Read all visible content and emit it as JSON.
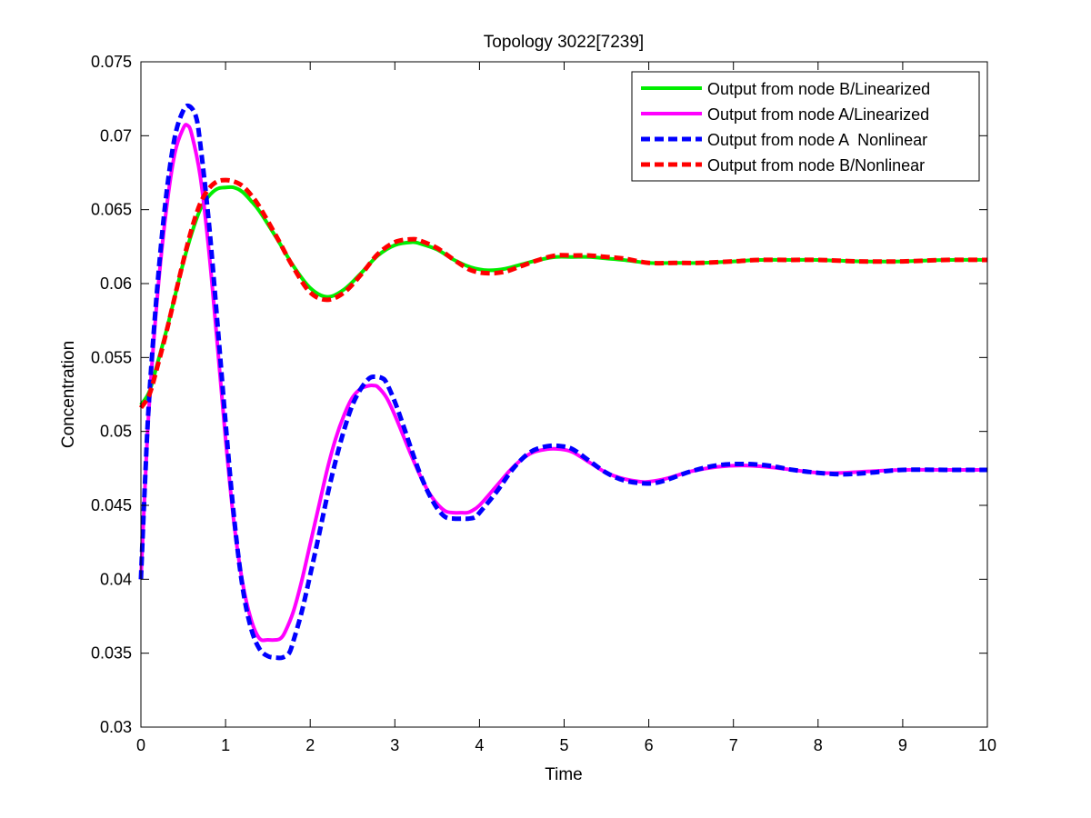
{
  "chart_data": {
    "type": "line",
    "title": "Topology 3022[7239]",
    "xlabel": "Time",
    "ylabel": "Concentration",
    "xlim": [
      0,
      10
    ],
    "ylim": [
      0.03,
      0.075
    ],
    "xticks": [
      0,
      1,
      2,
      3,
      4,
      5,
      6,
      7,
      8,
      9,
      10
    ],
    "yticks": [
      0.03,
      0.035,
      0.04,
      0.045,
      0.05,
      0.055,
      0.06,
      0.065,
      0.07,
      0.075
    ],
    "xtick_labels": [
      "0",
      "1",
      "2",
      "3",
      "4",
      "5",
      "6",
      "7",
      "8",
      "9",
      "10"
    ],
    "ytick_labels": [
      "0.03",
      "0.035",
      "0.04",
      "0.045",
      "0.05",
      "0.055",
      "0.06",
      "0.065",
      "0.07",
      "0.075"
    ],
    "grid": false,
    "legend_position": "top-right",
    "series": [
      {
        "name": "Output from node B/Linearized",
        "color": "#00ee00",
        "style": "solid",
        "x": [
          0,
          0.1,
          0.2,
          0.3,
          0.4,
          0.5,
          0.6,
          0.7,
          0.8,
          0.9,
          1.0,
          1.1,
          1.2,
          1.3,
          1.4,
          1.6,
          1.8,
          2.0,
          2.2,
          2.4,
          2.6,
          2.8,
          3.0,
          3.2,
          3.3,
          3.5,
          3.7,
          3.9,
          4.1,
          4.3,
          4.5,
          4.7,
          4.9,
          5.1,
          5.3,
          5.5,
          5.7,
          6.0,
          6.3,
          6.6,
          7.0,
          7.3,
          7.7,
          8.0,
          8.5,
          9.0,
          9.5,
          10.0
        ],
        "y": [
          0.0518,
          0.0527,
          0.0547,
          0.0568,
          0.0591,
          0.0614,
          0.0634,
          0.065,
          0.0659,
          0.0664,
          0.0665,
          0.0665,
          0.0662,
          0.0656,
          0.0649,
          0.0631,
          0.0612,
          0.0597,
          0.0591,
          0.0596,
          0.0607,
          0.0619,
          0.0626,
          0.0628,
          0.0627,
          0.0623,
          0.0616,
          0.0611,
          0.0609,
          0.061,
          0.0613,
          0.0616,
          0.0618,
          0.0618,
          0.0618,
          0.0617,
          0.0616,
          0.0614,
          0.0614,
          0.0614,
          0.0615,
          0.0616,
          0.0616,
          0.0616,
          0.0615,
          0.0615,
          0.0616,
          0.0616
        ]
      },
      {
        "name": "Output from node A/Linearized",
        "color": "#ff00ff",
        "style": "solid",
        "x": [
          0,
          0.05,
          0.1,
          0.2,
          0.3,
          0.4,
          0.5,
          0.55,
          0.6,
          0.7,
          0.8,
          0.9,
          1.0,
          1.1,
          1.2,
          1.3,
          1.4,
          1.5,
          1.6,
          1.65,
          1.7,
          1.8,
          1.9,
          2.0,
          2.1,
          2.2,
          2.3,
          2.4,
          2.5,
          2.6,
          2.7,
          2.75,
          2.8,
          2.9,
          3.0,
          3.1,
          3.2,
          3.3,
          3.4,
          3.5,
          3.6,
          3.7,
          3.8,
          3.85,
          3.9,
          4.0,
          4.2,
          4.4,
          4.6,
          4.8,
          4.95,
          5.1,
          5.3,
          5.5,
          5.7,
          5.9,
          6.0,
          6.2,
          6.5,
          6.8,
          7.1,
          7.4,
          7.7,
          8.0,
          8.3,
          8.6,
          9.0,
          9.5,
          10.0
        ],
        "y": [
          0.04,
          0.0465,
          0.052,
          0.0595,
          0.065,
          0.0688,
          0.0705,
          0.0707,
          0.0701,
          0.0673,
          0.0624,
          0.0561,
          0.0495,
          0.0438,
          0.0398,
          0.0373,
          0.036,
          0.0359,
          0.0359,
          0.036,
          0.0364,
          0.0378,
          0.0399,
          0.0424,
          0.0449,
          0.0474,
          0.0495,
          0.0511,
          0.0523,
          0.0529,
          0.0531,
          0.0531,
          0.053,
          0.0523,
          0.0511,
          0.0497,
          0.0483,
          0.047,
          0.0459,
          0.0451,
          0.0446,
          0.0445,
          0.0445,
          0.0445,
          0.0446,
          0.045,
          0.0463,
          0.0476,
          0.0485,
          0.0488,
          0.0488,
          0.0486,
          0.0479,
          0.0472,
          0.0468,
          0.0466,
          0.0466,
          0.0468,
          0.0473,
          0.0476,
          0.0477,
          0.0476,
          0.0474,
          0.0472,
          0.0472,
          0.0473,
          0.0474,
          0.0474,
          0.0474
        ]
      },
      {
        "name": "Output from node A  Nonlinear",
        "color": "#0000ff",
        "style": "dashed",
        "x": [
          0,
          0.05,
          0.1,
          0.2,
          0.3,
          0.4,
          0.5,
          0.57,
          0.65,
          0.7,
          0.8,
          0.9,
          1.0,
          1.1,
          1.2,
          1.3,
          1.4,
          1.5,
          1.6,
          1.67,
          1.75,
          1.8,
          1.9,
          2.0,
          2.1,
          2.2,
          2.3,
          2.4,
          2.5,
          2.6,
          2.7,
          2.77,
          2.85,
          2.9,
          3.0,
          3.1,
          3.2,
          3.3,
          3.4,
          3.5,
          3.6,
          3.7,
          3.8,
          3.87,
          3.95,
          4.0,
          4.2,
          4.4,
          4.6,
          4.8,
          4.97,
          5.1,
          5.3,
          5.5,
          5.7,
          5.9,
          6.05,
          6.2,
          6.5,
          6.8,
          7.1,
          7.4,
          7.7,
          8.0,
          8.3,
          8.6,
          9.0,
          9.5,
          10.0
        ],
        "y": [
          0.04,
          0.0468,
          0.0525,
          0.0602,
          0.066,
          0.0699,
          0.0717,
          0.072,
          0.0713,
          0.0695,
          0.0643,
          0.0576,
          0.0506,
          0.0442,
          0.0395,
          0.0367,
          0.0353,
          0.0348,
          0.0347,
          0.0347,
          0.035,
          0.0358,
          0.0378,
          0.0403,
          0.0429,
          0.0456,
          0.048,
          0.0501,
          0.0518,
          0.0529,
          0.0536,
          0.0537,
          0.0536,
          0.0533,
          0.052,
          0.0504,
          0.0487,
          0.0471,
          0.0458,
          0.0448,
          0.0442,
          0.0441,
          0.0441,
          0.0441,
          0.0442,
          0.0445,
          0.0459,
          0.0475,
          0.0486,
          0.049,
          0.049,
          0.0488,
          0.048,
          0.0472,
          0.0467,
          0.0465,
          0.0465,
          0.0467,
          0.0473,
          0.0477,
          0.0478,
          0.0477,
          0.0474,
          0.0472,
          0.0471,
          0.0472,
          0.0474,
          0.0474,
          0.0474
        ]
      },
      {
        "name": "Output from node B/Nonlinear",
        "color": "#ff0000",
        "style": "dashed",
        "x": [
          0,
          0.1,
          0.2,
          0.3,
          0.4,
          0.5,
          0.6,
          0.7,
          0.8,
          0.9,
          1.0,
          1.1,
          1.2,
          1.3,
          1.4,
          1.6,
          1.8,
          2.0,
          2.2,
          2.4,
          2.6,
          2.8,
          3.0,
          3.2,
          3.3,
          3.5,
          3.7,
          3.9,
          4.1,
          4.3,
          4.5,
          4.7,
          4.9,
          5.1,
          5.3,
          5.5,
          5.7,
          6.0,
          6.3,
          6.6,
          7.0,
          7.3,
          7.7,
          8.0,
          8.5,
          9.0,
          9.5,
          10.0
        ],
        "y": [
          0.0516,
          0.0525,
          0.0545,
          0.0567,
          0.0591,
          0.0615,
          0.0637,
          0.0654,
          0.0664,
          0.0669,
          0.067,
          0.0669,
          0.0666,
          0.066,
          0.0652,
          0.0632,
          0.0611,
          0.0594,
          0.0589,
          0.0594,
          0.0606,
          0.062,
          0.0628,
          0.063,
          0.0629,
          0.0624,
          0.0616,
          0.0609,
          0.0607,
          0.0608,
          0.0612,
          0.0616,
          0.0619,
          0.0619,
          0.0619,
          0.0618,
          0.0617,
          0.0614,
          0.0614,
          0.0614,
          0.0615,
          0.0616,
          0.0616,
          0.0616,
          0.0615,
          0.0615,
          0.0616,
          0.0616
        ]
      }
    ]
  }
}
